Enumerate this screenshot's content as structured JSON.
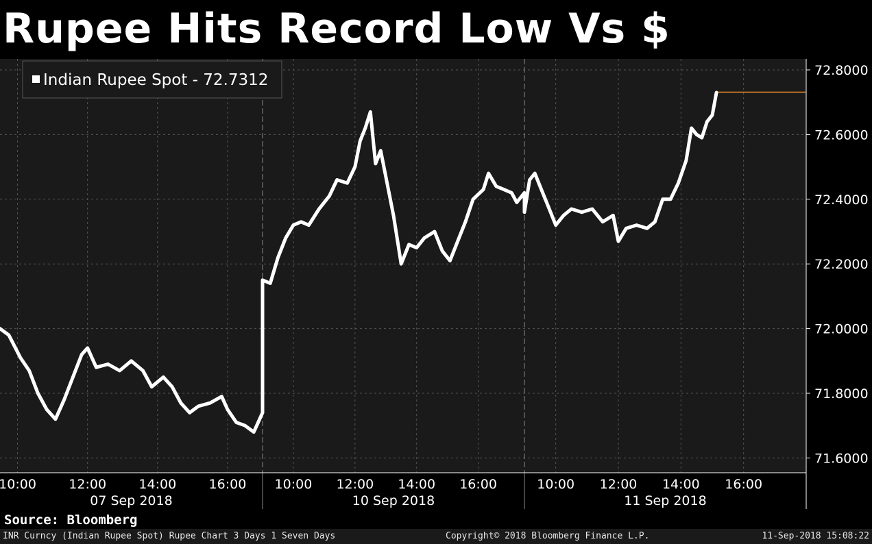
{
  "title": "Rupee Hits Record Low Vs $",
  "source": "Source: Bloomberg",
  "footer": {
    "left": "INR Curncy (Indian Rupee Spot) Rupee Chart 3 Days 1 Seven Days",
    "center": "Copyright© 2018 Bloomberg Finance L.P.",
    "right": "11-Sep-2018 15:08:22"
  },
  "colors": {
    "background": "#000000",
    "plot_background": "#1a1a1a",
    "line": "#ffffff",
    "last_value_line": "#f0902a",
    "grid": "#555555"
  },
  "chart_data": {
    "type": "line",
    "title": "",
    "ylim": [
      71.55,
      72.85
    ],
    "y_ticks": [
      "72.8000",
      "72.6000",
      "72.4000",
      "72.2000",
      "72.0000",
      "71.8000",
      "71.6000"
    ],
    "y_tick_values": [
      72.8,
      72.6,
      72.4,
      72.2,
      72.0,
      71.8,
      71.6
    ],
    "y_axis_side": "right",
    "grid": true,
    "legend": {
      "position": "top-left",
      "entries": [
        "Indian Rupee Spot - 72.7312"
      ]
    },
    "sessions": [
      {
        "date": "07 Sep 2018",
        "start": "09:30",
        "end": "17:00",
        "ticks": [
          "10:00",
          "12:00",
          "14:00",
          "16:00"
        ]
      },
      {
        "date": "10 Sep 2018",
        "start": "09:00",
        "end": "17:30",
        "ticks": [
          "10:00",
          "12:00",
          "14:00",
          "16:00"
        ]
      },
      {
        "date": "11 Sep 2018",
        "start": "09:00",
        "end": "18:00",
        "ticks": [
          "10:00",
          "12:00",
          "14:00",
          "16:00"
        ]
      }
    ],
    "last_value": 72.7312,
    "series": [
      {
        "name": "Indian Rupee Spot",
        "points": [
          [
            "07 Sep 2018",
            "09:30",
            72.0
          ],
          [
            "07 Sep 2018",
            "09:45",
            71.98
          ],
          [
            "07 Sep 2018",
            "10:05",
            71.91
          ],
          [
            "07 Sep 2018",
            "10:20",
            71.87
          ],
          [
            "07 Sep 2018",
            "10:35",
            71.8
          ],
          [
            "07 Sep 2018",
            "10:50",
            71.75
          ],
          [
            "07 Sep 2018",
            "11:05",
            71.72
          ],
          [
            "07 Sep 2018",
            "11:20",
            71.78
          ],
          [
            "07 Sep 2018",
            "11:35",
            71.85
          ],
          [
            "07 Sep 2018",
            "11:50",
            71.92
          ],
          [
            "07 Sep 2018",
            "12:00",
            71.94
          ],
          [
            "07 Sep 2018",
            "12:15",
            71.88
          ],
          [
            "07 Sep 2018",
            "12:35",
            71.89
          ],
          [
            "07 Sep 2018",
            "12:55",
            71.87
          ],
          [
            "07 Sep 2018",
            "13:15",
            71.9
          ],
          [
            "07 Sep 2018",
            "13:35",
            71.87
          ],
          [
            "07 Sep 2018",
            "13:50",
            71.82
          ],
          [
            "07 Sep 2018",
            "14:10",
            71.85
          ],
          [
            "07 Sep 2018",
            "14:25",
            71.82
          ],
          [
            "07 Sep 2018",
            "14:40",
            71.77
          ],
          [
            "07 Sep 2018",
            "14:55",
            71.74
          ],
          [
            "07 Sep 2018",
            "15:10",
            71.76
          ],
          [
            "07 Sep 2018",
            "15:30",
            71.77
          ],
          [
            "07 Sep 2018",
            "15:50",
            71.79
          ],
          [
            "07 Sep 2018",
            "16:00",
            71.75
          ],
          [
            "07 Sep 2018",
            "16:15",
            71.71
          ],
          [
            "07 Sep 2018",
            "16:30",
            71.7
          ],
          [
            "07 Sep 2018",
            "16:45",
            71.68
          ],
          [
            "07 Sep 2018",
            "17:00",
            71.74
          ],
          [
            "10 Sep 2018",
            "09:00",
            72.15
          ],
          [
            "10 Sep 2018",
            "09:15",
            72.14
          ],
          [
            "10 Sep 2018",
            "09:30",
            72.22
          ],
          [
            "10 Sep 2018",
            "09:45",
            72.28
          ],
          [
            "10 Sep 2018",
            "10:00",
            72.32
          ],
          [
            "10 Sep 2018",
            "10:15",
            72.33
          ],
          [
            "10 Sep 2018",
            "10:30",
            72.32
          ],
          [
            "10 Sep 2018",
            "10:50",
            72.37
          ],
          [
            "10 Sep 2018",
            "11:10",
            72.41
          ],
          [
            "10 Sep 2018",
            "11:25",
            72.46
          ],
          [
            "10 Sep 2018",
            "11:45",
            72.45
          ],
          [
            "10 Sep 2018",
            "12:00",
            72.5
          ],
          [
            "10 Sep 2018",
            "12:10",
            72.58
          ],
          [
            "10 Sep 2018",
            "12:20",
            72.62
          ],
          [
            "10 Sep 2018",
            "12:30",
            72.67
          ],
          [
            "10 Sep 2018",
            "12:40",
            72.51
          ],
          [
            "10 Sep 2018",
            "12:50",
            72.55
          ],
          [
            "10 Sep 2018",
            "13:00",
            72.47
          ],
          [
            "10 Sep 2018",
            "13:15",
            72.35
          ],
          [
            "10 Sep 2018",
            "13:30",
            72.2
          ],
          [
            "10 Sep 2018",
            "13:45",
            72.26
          ],
          [
            "10 Sep 2018",
            "14:00",
            72.25
          ],
          [
            "10 Sep 2018",
            "14:15",
            72.28
          ],
          [
            "10 Sep 2018",
            "14:35",
            72.3
          ],
          [
            "10 Sep 2018",
            "14:50",
            72.24
          ],
          [
            "10 Sep 2018",
            "15:05",
            72.21
          ],
          [
            "10 Sep 2018",
            "15:20",
            72.27
          ],
          [
            "10 Sep 2018",
            "15:35",
            72.33
          ],
          [
            "10 Sep 2018",
            "15:50",
            72.4
          ],
          [
            "10 Sep 2018",
            "16:10",
            72.43
          ],
          [
            "10 Sep 2018",
            "16:20",
            72.48
          ],
          [
            "10 Sep 2018",
            "16:35",
            72.44
          ],
          [
            "10 Sep 2018",
            "16:50",
            72.43
          ],
          [
            "10 Sep 2018",
            "17:05",
            72.42
          ],
          [
            "10 Sep 2018",
            "17:15",
            72.39
          ],
          [
            "10 Sep 2018",
            "17:30",
            72.42
          ],
          [
            "11 Sep 2018",
            "09:00",
            72.36
          ],
          [
            "11 Sep 2018",
            "09:10",
            72.46
          ],
          [
            "11 Sep 2018",
            "09:20",
            72.48
          ],
          [
            "11 Sep 2018",
            "09:30",
            72.44
          ],
          [
            "11 Sep 2018",
            "09:45",
            72.38
          ],
          [
            "11 Sep 2018",
            "10:00",
            72.32
          ],
          [
            "11 Sep 2018",
            "10:15",
            72.35
          ],
          [
            "11 Sep 2018",
            "10:30",
            72.37
          ],
          [
            "11 Sep 2018",
            "10:50",
            72.36
          ],
          [
            "11 Sep 2018",
            "11:10",
            72.37
          ],
          [
            "11 Sep 2018",
            "11:30",
            72.33
          ],
          [
            "11 Sep 2018",
            "11:50",
            72.35
          ],
          [
            "11 Sep 2018",
            "12:00",
            72.27
          ],
          [
            "11 Sep 2018",
            "12:15",
            72.31
          ],
          [
            "11 Sep 2018",
            "12:35",
            72.32
          ],
          [
            "11 Sep 2018",
            "12:55",
            72.31
          ],
          [
            "11 Sep 2018",
            "13:10",
            72.33
          ],
          [
            "11 Sep 2018",
            "13:25",
            72.4
          ],
          [
            "11 Sep 2018",
            "13:40",
            72.4
          ],
          [
            "11 Sep 2018",
            "13:55",
            72.45
          ],
          [
            "11 Sep 2018",
            "14:10",
            72.52
          ],
          [
            "11 Sep 2018",
            "14:20",
            72.62
          ],
          [
            "11 Sep 2018",
            "14:30",
            72.6
          ],
          [
            "11 Sep 2018",
            "14:40",
            72.59
          ],
          [
            "11 Sep 2018",
            "14:50",
            72.64
          ],
          [
            "11 Sep 2018",
            "15:00",
            72.66
          ],
          [
            "11 Sep 2018",
            "15:08",
            72.73
          ]
        ]
      }
    ]
  }
}
